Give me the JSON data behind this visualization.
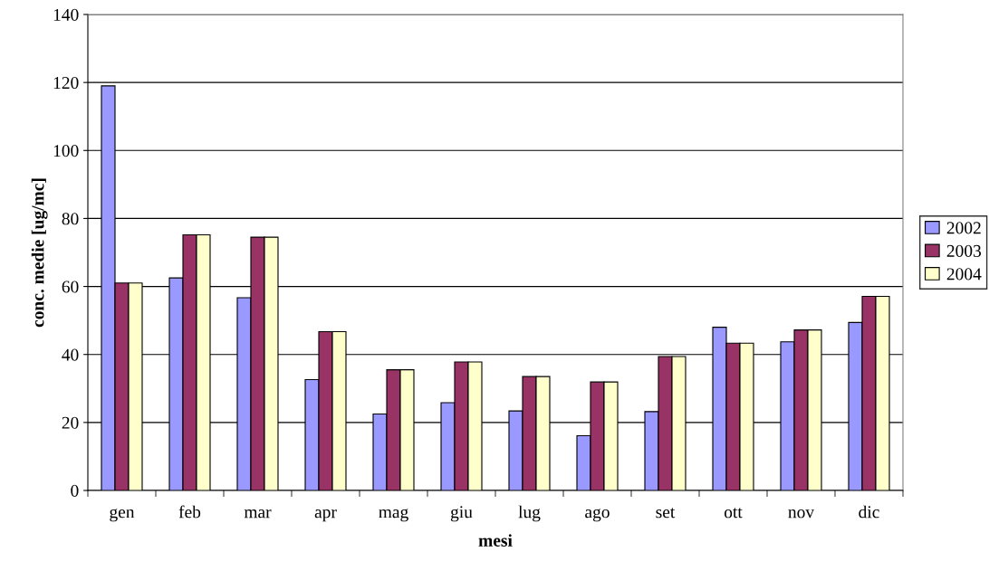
{
  "chart_data": {
    "type": "bar",
    "xlabel": "mesi",
    "ylabel": "conc. medie [ug/mc]",
    "categories": [
      "gen",
      "feb",
      "mar",
      "apr",
      "mag",
      "giu",
      "lug",
      "ago",
      "set",
      "ott",
      "nov",
      "dic"
    ],
    "series": [
      {
        "name": "2002",
        "color": "#9999ff",
        "values": [
          119,
          62.5,
          56.7,
          32.6,
          22.5,
          25.8,
          23.4,
          16.1,
          23.2,
          48,
          43.7,
          49.4
        ]
      },
      {
        "name": "2003",
        "color": "#993366",
        "values": [
          61,
          75.2,
          74.5,
          46.7,
          35.5,
          37.8,
          33.5,
          31.9,
          39.4,
          43.3,
          47.2,
          57.1
        ]
      },
      {
        "name": "2004",
        "color": "#ffffcc",
        "values": [
          61,
          75.2,
          74.5,
          46.7,
          35.5,
          37.8,
          33.5,
          31.9,
          39.4,
          43.3,
          47.2,
          57.1
        ]
      }
    ],
    "ylim": [
      0,
      140
    ],
    "yticks": [
      0,
      20,
      40,
      60,
      80,
      100,
      120,
      140
    ],
    "grid": "y",
    "legend": "right"
  }
}
